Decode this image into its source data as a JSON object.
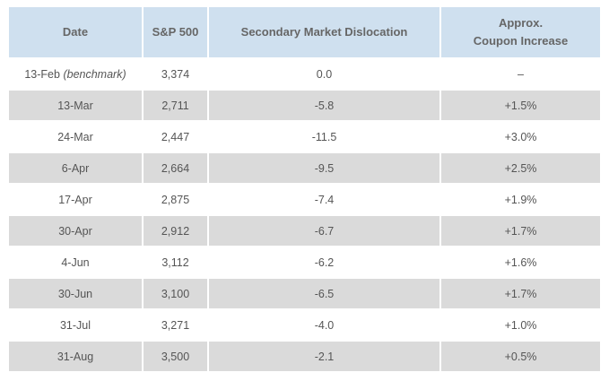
{
  "table": {
    "headers": {
      "date": "Date",
      "sp500": "S&P 500",
      "dislocation": "Secondary Market Dislocation",
      "coupon_line1": "Approx.",
      "coupon_line2": "Coupon Increase"
    },
    "rows": [
      {
        "date": "13-Feb",
        "note": "(benchmark)",
        "sp500": "3,374",
        "dislocation": "0.0",
        "coupon": "–"
      },
      {
        "date": "13-Mar",
        "note": "",
        "sp500": "2,711",
        "dislocation": "-5.8",
        "coupon": "+1.5%"
      },
      {
        "date": "24-Mar",
        "note": "",
        "sp500": "2,447",
        "dislocation": "-11.5",
        "coupon": "+3.0%"
      },
      {
        "date": "6-Apr",
        "note": "",
        "sp500": "2,664",
        "dislocation": "-9.5",
        "coupon": "+2.5%"
      },
      {
        "date": "17-Apr",
        "note": "",
        "sp500": "2,875",
        "dislocation": "-7.4",
        "coupon": "+1.9%"
      },
      {
        "date": "30-Apr",
        "note": "",
        "sp500": "2,912",
        "dislocation": "-6.7",
        "coupon": "+1.7%"
      },
      {
        "date": "4-Jun",
        "note": "",
        "sp500": "3,112",
        "dislocation": "-6.2",
        "coupon": "+1.6%"
      },
      {
        "date": "30-Jun",
        "note": "",
        "sp500": "3,100",
        "dislocation": "-6.5",
        "coupon": "+1.7%"
      },
      {
        "date": "31-Jul",
        "note": "",
        "sp500": "3,271",
        "dislocation": "-4.0",
        "coupon": "+1.0%"
      },
      {
        "date": "31-Aug",
        "note": "",
        "sp500": "3,500",
        "dislocation": "-2.1",
        "coupon": "+0.5%"
      }
    ]
  },
  "colors": {
    "header_bg": "#cfe0ef",
    "stripe_bg": "#dadada",
    "text": "#555555"
  }
}
